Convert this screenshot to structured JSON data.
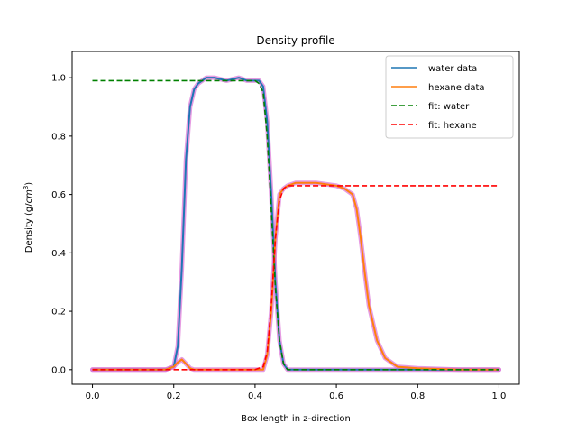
{
  "chart_data": {
    "type": "line",
    "title": "Density profile",
    "xlabel": "Box length in z-direction",
    "ylabel_main": "Density (g/",
    "ylabel_unit": "cm",
    "ylabel_exp": "3",
    "ylabel_close": ")",
    "xlim": [
      -0.05,
      1.05
    ],
    "ylim": [
      -0.05,
      1.09
    ],
    "xticks": [
      0.0,
      0.2,
      0.4,
      0.6,
      0.8,
      1.0
    ],
    "xtick_labels": [
      "0.0",
      "0.2",
      "0.4",
      "0.6",
      "0.8",
      "1.0"
    ],
    "yticks": [
      0.0,
      0.2,
      0.4,
      0.6,
      0.8,
      1.0
    ],
    "ytick_labels": [
      "0.0",
      "0.2",
      "0.4",
      "0.6",
      "0.8",
      "1.0"
    ],
    "grid": false,
    "legend_position": "top-right",
    "error_band_color": "#da70d6",
    "series": [
      {
        "name": "water data",
        "color": "#1f77b4",
        "style": "solid",
        "x": [
          0.0,
          0.1,
          0.18,
          0.2,
          0.21,
          0.22,
          0.23,
          0.24,
          0.25,
          0.26,
          0.27,
          0.28,
          0.3,
          0.33,
          0.36,
          0.38,
          0.4,
          0.41,
          0.42,
          0.43,
          0.44,
          0.45,
          0.46,
          0.47,
          0.48,
          0.5,
          0.6,
          0.7,
          0.8,
          0.9,
          1.0
        ],
        "y": [
          0.0,
          0.0,
          0.0,
          0.01,
          0.08,
          0.35,
          0.72,
          0.9,
          0.96,
          0.98,
          0.99,
          1.0,
          1.0,
          0.99,
          1.0,
          0.99,
          0.99,
          0.99,
          0.97,
          0.85,
          0.6,
          0.3,
          0.1,
          0.02,
          0.0,
          0.0,
          0.0,
          0.0,
          0.0,
          0.0,
          0.0
        ]
      },
      {
        "name": "hexane data",
        "color": "#ff7f0e",
        "style": "solid",
        "x": [
          0.0,
          0.1,
          0.18,
          0.2,
          0.21,
          0.22,
          0.23,
          0.24,
          0.25,
          0.3,
          0.4,
          0.42,
          0.43,
          0.44,
          0.45,
          0.46,
          0.47,
          0.48,
          0.5,
          0.55,
          0.6,
          0.62,
          0.64,
          0.65,
          0.66,
          0.67,
          0.68,
          0.7,
          0.72,
          0.75,
          0.8,
          0.9,
          1.0
        ],
        "y": [
          0.0,
          0.0,
          0.0,
          0.01,
          0.025,
          0.035,
          0.02,
          0.005,
          0.0,
          0.0,
          0.0,
          0.0,
          0.05,
          0.2,
          0.45,
          0.6,
          0.62,
          0.63,
          0.64,
          0.64,
          0.63,
          0.62,
          0.6,
          0.55,
          0.45,
          0.33,
          0.22,
          0.1,
          0.04,
          0.01,
          0.005,
          0.0,
          0.0
        ]
      },
      {
        "name": "fit: water",
        "color": "#008000",
        "style": "dashed",
        "x": [
          0.0,
          0.1,
          0.2,
          0.3,
          0.4,
          0.41,
          0.42,
          0.43,
          0.44,
          0.45,
          0.46,
          0.47,
          0.48,
          0.5,
          0.6,
          0.8,
          1.0
        ],
        "y": [
          0.99,
          0.99,
          0.99,
          0.99,
          0.99,
          0.98,
          0.95,
          0.8,
          0.55,
          0.28,
          0.1,
          0.02,
          0.0,
          0.0,
          0.0,
          0.0,
          0.0
        ]
      },
      {
        "name": "fit: hexane",
        "color": "#ff0000",
        "style": "dashed",
        "x": [
          0.0,
          0.2,
          0.4,
          0.42,
          0.43,
          0.44,
          0.45,
          0.46,
          0.47,
          0.48,
          0.5,
          0.6,
          0.8,
          1.0
        ],
        "y": [
          0.0,
          0.0,
          0.0,
          0.01,
          0.06,
          0.22,
          0.45,
          0.58,
          0.62,
          0.63,
          0.63,
          0.63,
          0.63,
          0.63
        ]
      }
    ]
  }
}
